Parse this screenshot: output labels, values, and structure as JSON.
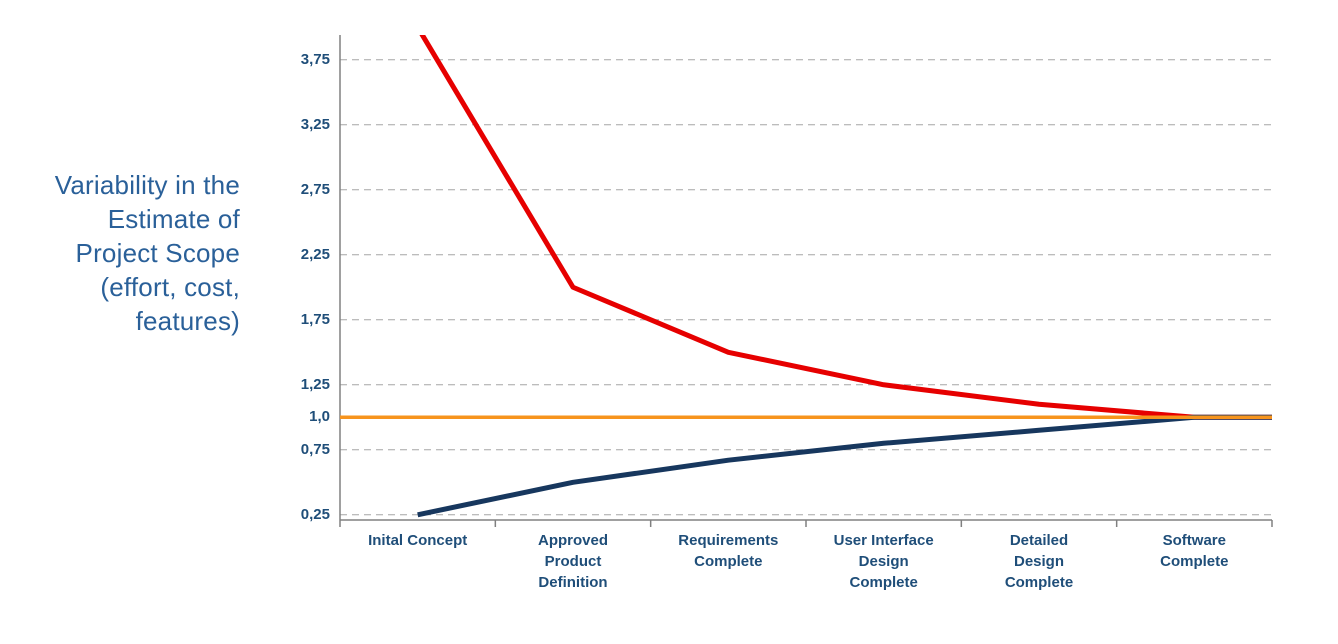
{
  "chart_data": {
    "type": "line",
    "title": "",
    "ylabel_lines": [
      "Variability in the",
      "Estimate of",
      "Project Scope",
      "(effort, cost,",
      "features)"
    ],
    "categories": [
      [
        "Inital Concept"
      ],
      [
        "Approved",
        "Product",
        "Definition"
      ],
      [
        "Requirements",
        "Complete"
      ],
      [
        "User Interface",
        "Design",
        "Complete"
      ],
      [
        "Detailed",
        "Design",
        "Complete"
      ],
      [
        "Software",
        "Complete"
      ]
    ],
    "y_ticks": [
      {
        "label": "3,75",
        "value": 3.75
      },
      {
        "label": "3,25",
        "value": 3.25
      },
      {
        "label": "2,75",
        "value": 2.75
      },
      {
        "label": "2,25",
        "value": 2.25
      },
      {
        "label": "1,75",
        "value": 1.75
      },
      {
        "label": "1,25",
        "value": 1.25
      },
      {
        "label": "1,0",
        "value": 1.0
      },
      {
        "label": "0,75",
        "value": 0.75
      },
      {
        "label": "0,25",
        "value": 0.25
      }
    ],
    "ylim": [
      0.21,
      3.94
    ],
    "grid": "dashed-horizontal",
    "legend": "none",
    "series": [
      {
        "name": "upper-estimate",
        "color": "#e60000",
        "width": 5,
        "values": [
          4.0,
          2.0,
          1.5,
          1.25,
          1.1,
          1.0
        ],
        "full_width": false
      },
      {
        "name": "lower-estimate",
        "color": "#17375e",
        "width": 5,
        "values": [
          0.25,
          0.5,
          0.67,
          0.8,
          0.9,
          1.0
        ],
        "full_width": false
      },
      {
        "name": "baseline",
        "color": "#f7941d",
        "width": 3.5,
        "values": [
          1.0,
          1.0,
          1.0,
          1.0,
          1.0,
          1.0
        ],
        "full_width": true
      }
    ],
    "colors": {
      "gridline": "#a6a6a6",
      "axis": "#808080",
      "tick_label": "#1f4e79",
      "category_label": "#1f4e79",
      "axis_title": "#2a6099"
    }
  }
}
